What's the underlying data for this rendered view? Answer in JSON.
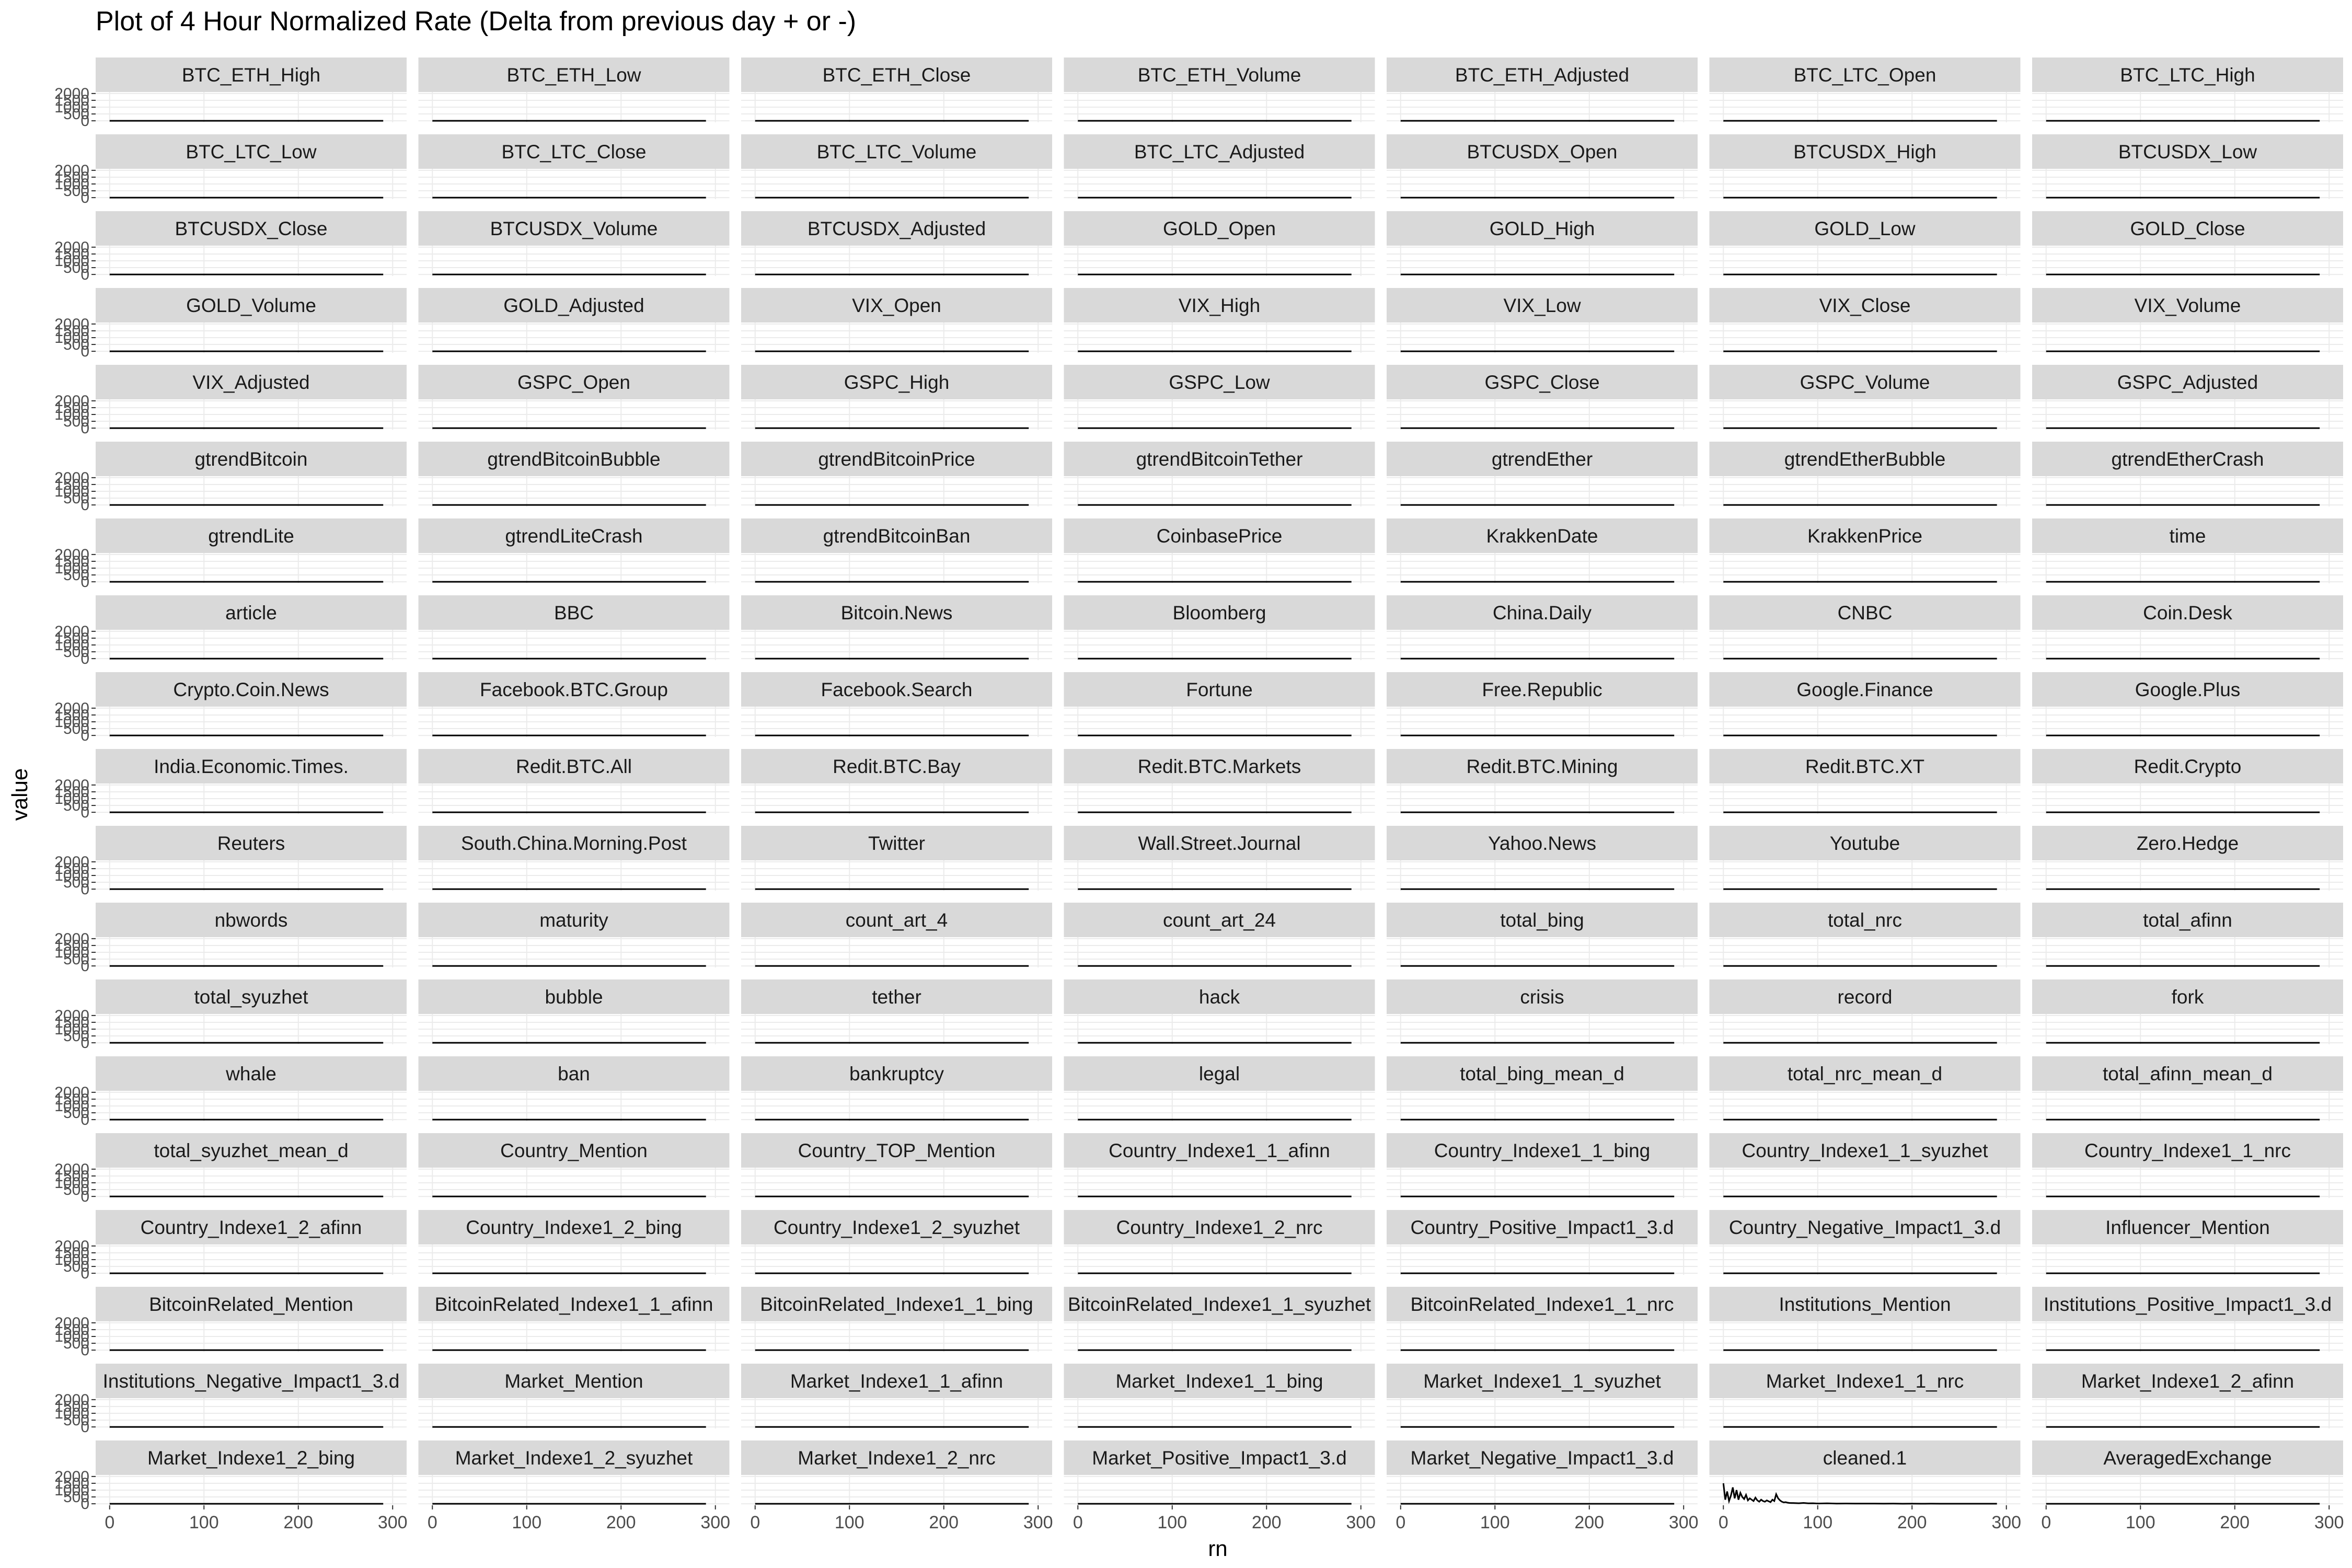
{
  "chart_data": {
    "type": "line",
    "title": "Plot of 4 Hour Normalized Rate (Delta from previous day + or -)",
    "xlabel": "rn",
    "ylabel": "value",
    "xlim": [
      0,
      300
    ],
    "ylim": [
      0,
      2000
    ],
    "x_ticks": [
      0,
      100,
      200,
      300
    ],
    "y_ticks": [
      0,
      500,
      1000,
      1500,
      2000
    ],
    "grid": true,
    "facet_columns": 7,
    "colors": {
      "strip_background": "#d9d9d9",
      "grid_line": "#ebebeb",
      "series_line": "#000000",
      "axis_text": "#4d4d4d",
      "text": "#000000"
    },
    "x_ticks_labels": [
      "0",
      "100",
      "200",
      "300"
    ],
    "y_ticks_labels": [
      "0",
      "500",
      "1000",
      "1500",
      "2000"
    ],
    "panels": [
      "BTC_ETH_High",
      "BTC_ETH_Low",
      "BTC_ETH_Close",
      "BTC_ETH_Volume",
      "BTC_ETH_Adjusted",
      "BTC_LTC_Open",
      "BTC_LTC_High",
      "BTC_LTC_Low",
      "BTC_LTC_Close",
      "BTC_LTC_Volume",
      "BTC_LTC_Adjusted",
      "BTCUSDX_Open",
      "BTCUSDX_High",
      "BTCUSDX_Low",
      "BTCUSDX_Close",
      "BTCUSDX_Volume",
      "BTCUSDX_Adjusted",
      "GOLD_Open",
      "GOLD_High",
      "GOLD_Low",
      "GOLD_Close",
      "GOLD_Volume",
      "GOLD_Adjusted",
      "VIX_Open",
      "VIX_High",
      "VIX_Low",
      "VIX_Close",
      "VIX_Volume",
      "VIX_Adjusted",
      "GSPC_Open",
      "GSPC_High",
      "GSPC_Low",
      "GSPC_Close",
      "GSPC_Volume",
      "GSPC_Adjusted",
      "gtrendBitcoin",
      "gtrendBitcoinBubble",
      "gtrendBitcoinPrice",
      "gtrendBitcoinTether",
      "gtrendEther",
      "gtrendEtherBubble",
      "gtrendEtherCrash",
      "gtrendLite",
      "gtrendLiteCrash",
      "gtrendBitcoinBan",
      "CoinbasePrice",
      "KrakkenDate",
      "KrakkenPrice",
      "time",
      "article",
      "BBC",
      "Bitcoin.News",
      "Bloomberg",
      "China.Daily",
      "CNBC",
      "Coin.Desk",
      "Crypto.Coin.News",
      "Facebook.BTC.Group",
      "Facebook.Search",
      "Fortune",
      "Free.Republic",
      "Google.Finance",
      "Google.Plus",
      "India.Economic.Times.",
      "Redit.BTC.All",
      "Redit.BTC.Bay",
      "Redit.BTC.Markets",
      "Redit.BTC.Mining",
      "Redit.BTC.XT",
      "Redit.Crypto",
      "Reuters",
      "South.China.Morning.Post",
      "Twitter",
      "Wall.Street.Journal",
      "Yahoo.News",
      "Youtube",
      "Zero.Hedge",
      "nbwords",
      "maturity",
      "count_art_4",
      "count_art_24",
      "total_bing",
      "total_nrc",
      "total_afinn",
      "total_syuzhet",
      "bubble",
      "tether",
      "hack",
      "crisis",
      "record",
      "fork",
      "whale",
      "ban",
      "bankruptcy",
      "legal",
      "total_bing_mean_d",
      "total_nrc_mean_d",
      "total_afinn_mean_d",
      "total_syuzhet_mean_d",
      "Country_Mention",
      "Country_TOP_Mention",
      "Country_Indexe1_1_afinn",
      "Country_Indexe1_1_bing",
      "Country_Indexe1_1_syuzhet",
      "Country_Indexe1_1_nrc",
      "Country_Indexe1_2_afinn",
      "Country_Indexe1_2_bing",
      "Country_Indexe1_2_syuzhet",
      "Country_Indexe1_2_nrc",
      "Country_Positive_Impact1_3.d",
      "Country_Negative_Impact1_3.d",
      "Influencer_Mention",
      "BitcoinRelated_Mention",
      "BitcoinRelated_Indexe1_1_afinn",
      "BitcoinRelated_Indexe1_1_bing",
      "BitcoinRelated_Indexe1_1_syuzhet",
      "BitcoinRelated_Indexe1_1_nrc",
      "Institutions_Mention",
      "Institutions_Positive_Impact1_3.d",
      "Institutions_Negative_Impact1_3.d",
      "Market_Mention",
      "Market_Indexe1_1_afinn",
      "Market_Indexe1_1_bing",
      "Market_Indexe1_1_syuzhet",
      "Market_Indexe1_1_nrc",
      "Market_Indexe1_2_afinn",
      "Market_Indexe1_2_bing",
      "Market_Indexe1_2_syuzhet",
      "Market_Indexe1_2_nrc",
      "Market_Positive_Impact1_3.d",
      "Market_Negative_Impact1_3.d",
      "cleaned.1",
      "AveragedExchange"
    ],
    "default_series": {
      "x": [
        0,
        290
      ],
      "y": [
        0,
        0
      ]
    },
    "special_series": {
      "cleaned.1": {
        "x": [
          0,
          2,
          4,
          6,
          8,
          10,
          12,
          14,
          16,
          18,
          20,
          22,
          24,
          26,
          28,
          30,
          32,
          34,
          36,
          38,
          40,
          42,
          44,
          46,
          48,
          50,
          52,
          54,
          56,
          58,
          60,
          62,
          64,
          66,
          68,
          70,
          75,
          80,
          85,
          90,
          95,
          100,
          110,
          120,
          130,
          140,
          150,
          160,
          170,
          180,
          190,
          200,
          210,
          220,
          230,
          240,
          250,
          260,
          270,
          280,
          290
        ],
        "y": [
          1500,
          300,
          900,
          200,
          600,
          1200,
          400,
          1000,
          300,
          800,
          500,
          350,
          650,
          250,
          400,
          300,
          200,
          450,
          250,
          150,
          300,
          200,
          150,
          250,
          180,
          120,
          300,
          200,
          700,
          400,
          250,
          150,
          100,
          120,
          80,
          60,
          50,
          40,
          60,
          30,
          40,
          20,
          30,
          15,
          20,
          10,
          15,
          10,
          8,
          10,
          5,
          8,
          5,
          6,
          4,
          5,
          3,
          4,
          3,
          2,
          2
        ]
      }
    }
  }
}
